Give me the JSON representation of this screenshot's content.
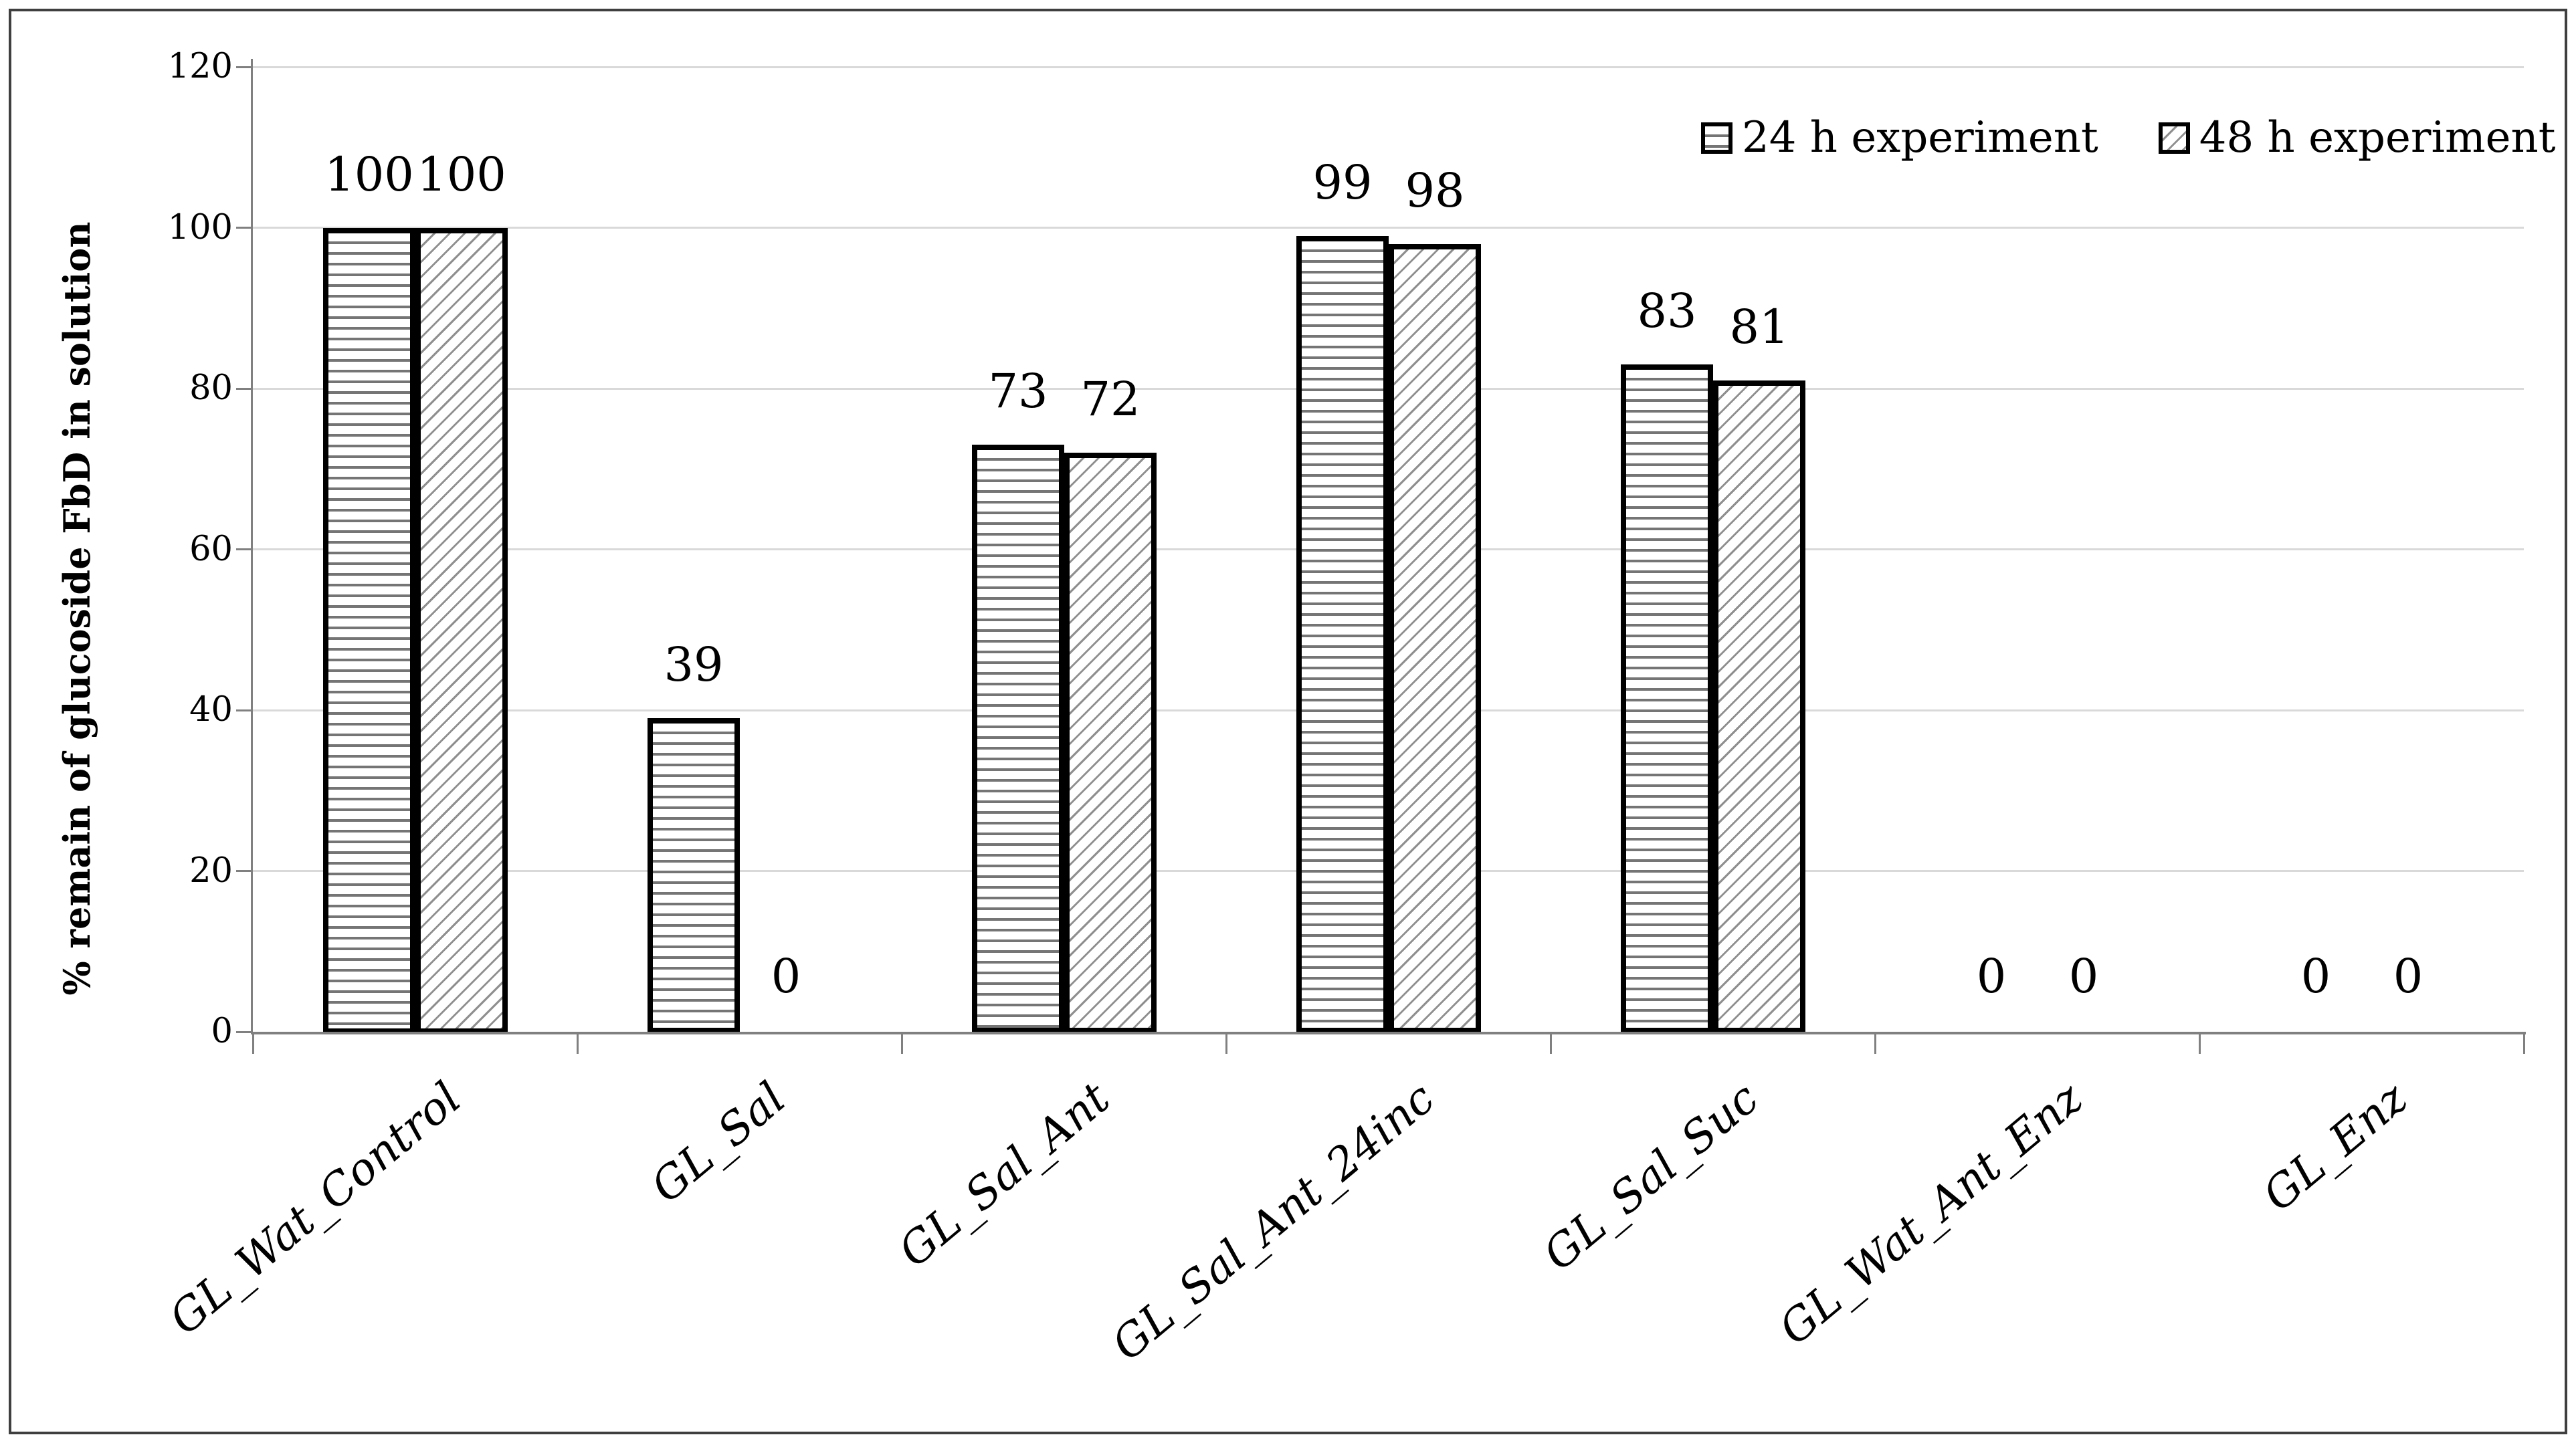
{
  "chart_data": {
    "type": "bar",
    "title": "",
    "categories": [
      "GL_Wat_Control",
      "GL_Sal",
      "GL_Sal_Ant",
      "GL_Sal_Ant_24inc",
      "GL_Sal_Suc",
      "GL_Wat_Ant_Enz",
      "GL_Enz"
    ],
    "series": [
      {
        "name": "24 h experiment",
        "pattern": "horizontal-lines",
        "values": [
          100,
          39,
          73,
          99,
          83,
          0,
          0
        ]
      },
      {
        "name": "48 h experiment",
        "pattern": "diagonal-lines",
        "values": [
          100,
          0,
          72,
          98,
          81,
          0,
          0
        ]
      }
    ],
    "value_labels": [
      [
        "100",
        "39",
        "73",
        "99",
        "83",
        "0",
        "0"
      ],
      [
        "100",
        "0",
        "72",
        "98",
        "81",
        "0",
        "0"
      ]
    ],
    "ylabel": "% remain of glucoside FbD in solution",
    "xlabel": "",
    "ylim": [
      0,
      120
    ],
    "yticks": [
      0,
      20,
      40,
      60,
      80,
      100,
      120
    ],
    "grid": "horizontal-gridlines",
    "legend_position": "top-right",
    "value_label_position": "above-bars",
    "colors": {
      "bar_fill": "#ffffff",
      "bar_border": "#000000",
      "hatch_horizontal": "#757575",
      "hatch_diagonal": "#8f8f8f",
      "gridline": "#d9d9d9",
      "axis": "#808080",
      "text": "#000000",
      "figure_border": "#3f3f3f",
      "background": "#ffffff"
    }
  }
}
